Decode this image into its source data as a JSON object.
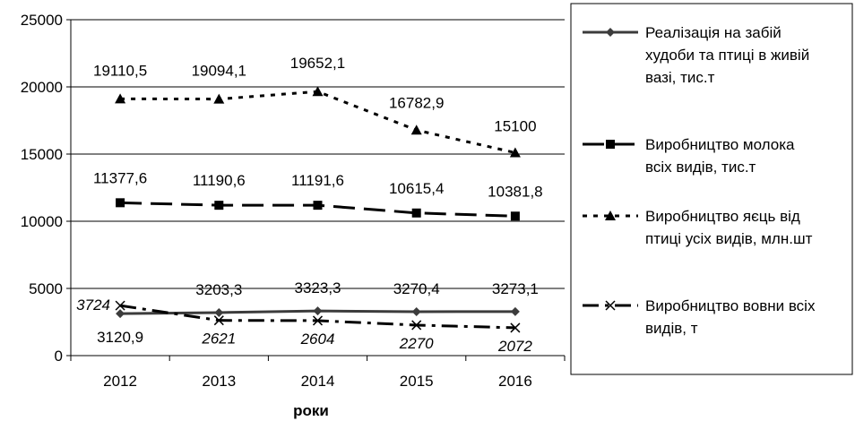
{
  "chart_data": {
    "type": "line",
    "title": "",
    "xlabel": "роки",
    "ylabel": "",
    "categories": [
      "2012",
      "2013",
      "2014",
      "2015",
      "2016"
    ],
    "ylim": [
      0,
      25000
    ],
    "yticks": [
      "0",
      "5000",
      "10000",
      "15000",
      "20000",
      "25000"
    ],
    "grid": "horizontal",
    "legend_position": "right",
    "series": [
      {
        "name": "Реалізація на забій худоби та птиці в живій вазі, тис.т",
        "legend_lines": [
          "Реалізація на забій",
          "худоби та птиці в живій",
          "вазі, тис.т"
        ],
        "values": [
          3120.9,
          3203.3,
          3323.3,
          3270.4,
          3273.1
        ],
        "labels": [
          "3120,9",
          "3203,3",
          "3323,3",
          "3270,4",
          "3273,1"
        ],
        "marker": "diamond",
        "dash": "solid",
        "color": "#3c3c3c"
      },
      {
        "name": "Виробництво молока всіх видів, тис.т",
        "legend_lines": [
          "Виробництво молока",
          "всіх видів, тис.т"
        ],
        "values": [
          11377.6,
          11190.6,
          11191.6,
          10615.4,
          10381.8
        ],
        "labels": [
          "11377,6",
          "11190,6",
          "11191,6",
          "10615,4",
          "10381,8"
        ],
        "marker": "square",
        "dash": "longdash",
        "color": "#000000"
      },
      {
        "name": "Виробництво яєць від птиці усіх видів, млн.шт",
        "legend_lines": [
          "Виробництво яєць від",
          "птиці усіх видів, млн.шт"
        ],
        "values": [
          19110.5,
          19094.1,
          19652.1,
          16782.9,
          15100
        ],
        "labels": [
          "19110,5",
          "19094,1",
          "19652,1",
          "16782,9",
          "15100"
        ],
        "marker": "triangle",
        "dash": "dotted",
        "color": "#000000"
      },
      {
        "name": "Виробництво вовни всіх видів, т",
        "legend_lines": [
          "Виробництво вовни всіх",
          "видів, т"
        ],
        "values": [
          3724,
          2621,
          2604,
          2270,
          2072
        ],
        "labels": [
          "3724",
          "2621",
          "2604",
          "2270",
          "2072"
        ],
        "marker": "x",
        "dash": "dashdot",
        "color": "#000000"
      }
    ]
  }
}
